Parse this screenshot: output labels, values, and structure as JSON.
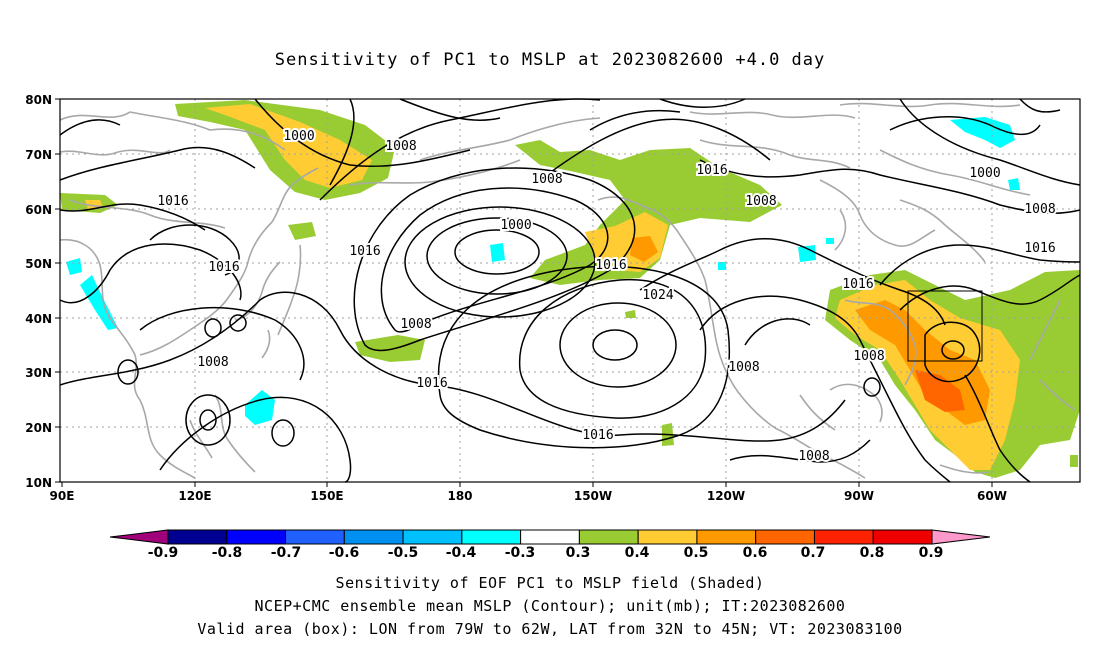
{
  "title": "Sensitivity of PC1 to MSLP at 2023082600 +4.0 day",
  "axes": {
    "lat_labels": [
      "80N",
      "70N",
      "60N",
      "50N",
      "40N",
      "30N",
      "20N",
      "10N"
    ],
    "lon_labels": [
      "90E",
      "120E",
      "150E",
      "180",
      "150W",
      "120W",
      "90W",
      "60W"
    ]
  },
  "contour_labels": [
    "1000",
    "1008",
    "1016",
    "1016",
    "1016",
    "1000",
    "1008",
    "1016",
    "1024",
    "1016",
    "1008",
    "1016",
    "1008",
    "1000",
    "1008",
    "1016",
    "1016",
    "1008",
    "1008",
    "1008",
    "1016",
    "1008"
  ],
  "colorbar": {
    "labels": [
      "-0.9",
      "-0.8",
      "-0.7",
      "-0.6",
      "-0.5",
      "-0.4",
      "-0.3",
      "0.3",
      "0.4",
      "0.5",
      "0.6",
      "0.7",
      "0.8",
      "0.9"
    ],
    "colors": [
      "#a0007a",
      "#000090",
      "#0000ff",
      "#2060ff",
      "#0090f0",
      "#00c0ff",
      "#00ffff",
      "#ffffff",
      "#99cc33",
      "#ffcc33",
      "#ff9900",
      "#ff6600",
      "#ff2200",
      "#ee0000",
      "#ff99cc"
    ]
  },
  "footer": {
    "line1": "Sensitivity of EOF PC1 to MSLP field (Shaded)",
    "line2": "NCEP+CMC ensemble mean MSLP (Contour); unit(mb); IT:2023082600",
    "line3": "Valid area (box): LON from 79W to 62W, LAT from 32N to 45N; VT: 2023083100"
  }
}
